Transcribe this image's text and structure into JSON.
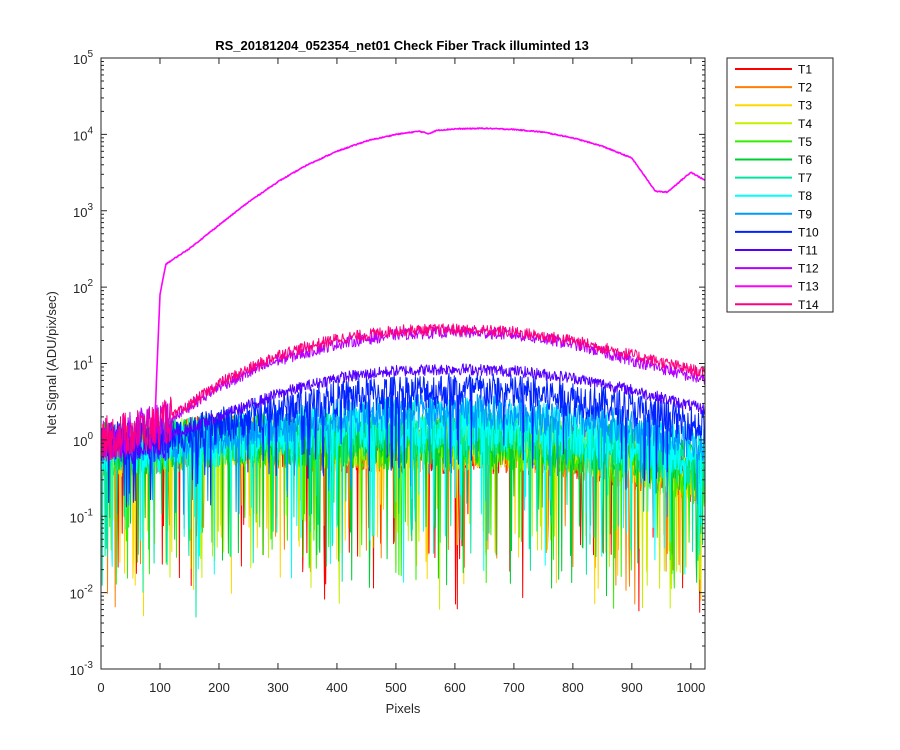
{
  "chart_data": {
    "type": "line",
    "title": "RS_20181204_052354_net01   Check Fiber     Track illuminted 13",
    "xlabel": "Pixels",
    "ylabel": "Net Signal (ADU/pix/sec)",
    "xlim": [
      0,
      1024
    ],
    "ylim": [
      0.001,
      100000
    ],
    "yscale": "log",
    "xticks": [
      "0",
      "100",
      "200",
      "300",
      "400",
      "500",
      "600",
      "700",
      "800",
      "900",
      "1000"
    ],
    "yticks": [
      {
        "base": "10",
        "exp": "-3"
      },
      {
        "base": "10",
        "exp": "-2"
      },
      {
        "base": "10",
        "exp": "-1"
      },
      {
        "base": "10",
        "exp": "0"
      },
      {
        "base": "10",
        "exp": "1"
      },
      {
        "base": "10",
        "exp": "2"
      },
      {
        "base": "10",
        "exp": "3"
      },
      {
        "base": "10",
        "exp": "4"
      },
      {
        "base": "10",
        "exp": "5"
      }
    ],
    "grid": false,
    "legend_position": "outside-right",
    "series": [
      {
        "name": "T1",
        "color": "#ff0000",
        "x": [
          0,
          100,
          200,
          300,
          400,
          500,
          600,
          700,
          800,
          900,
          1024
        ],
        "y": [
          0.8,
          0.8,
          1.0,
          0.9,
          0.8,
          0.8,
          0.8,
          0.8,
          0.7,
          0.5,
          0.3
        ]
      },
      {
        "name": "T2",
        "color": "#ff7f00",
        "x": [
          0,
          100,
          200,
          300,
          400,
          500,
          600,
          700,
          800,
          900,
          1024
        ],
        "y": [
          0.7,
          0.8,
          1.0,
          0.9,
          0.8,
          0.8,
          0.8,
          0.8,
          0.7,
          0.5,
          0.3
        ]
      },
      {
        "name": "T3",
        "color": "#ffd700",
        "x": [
          0,
          100,
          200,
          300,
          400,
          500,
          600,
          700,
          800,
          900,
          1024
        ],
        "y": [
          0.7,
          0.8,
          1.0,
          1.0,
          0.9,
          0.9,
          0.9,
          0.9,
          0.8,
          0.6,
          0.3
        ]
      },
      {
        "name": "T4",
        "color": "#c4f000",
        "x": [
          0,
          100,
          200,
          300,
          400,
          500,
          600,
          700,
          800,
          900,
          1024
        ],
        "y": [
          0.7,
          0.8,
          1.0,
          1.0,
          0.9,
          0.9,
          0.9,
          0.9,
          0.8,
          0.6,
          0.3
        ]
      },
      {
        "name": "T5",
        "color": "#33ee00",
        "x": [
          0,
          100,
          200,
          300,
          400,
          500,
          600,
          700,
          800,
          900,
          1024
        ],
        "y": [
          0.7,
          0.8,
          1.0,
          1.0,
          0.9,
          0.9,
          0.9,
          0.9,
          0.8,
          0.6,
          0.3
        ]
      },
      {
        "name": "T6",
        "color": "#00cc33",
        "x": [
          0,
          100,
          200,
          300,
          400,
          500,
          600,
          700,
          800,
          900,
          1024
        ],
        "y": [
          0.8,
          0.8,
          1.0,
          1.0,
          1.0,
          1.0,
          1.0,
          1.0,
          0.9,
          0.7,
          0.4
        ]
      },
      {
        "name": "T7",
        "color": "#00e5a0",
        "x": [
          0,
          100,
          200,
          300,
          400,
          500,
          600,
          700,
          800,
          900,
          1024
        ],
        "y": [
          0.8,
          0.8,
          1.0,
          1.2,
          1.3,
          1.4,
          1.4,
          1.3,
          1.1,
          0.8,
          0.5
        ]
      },
      {
        "name": "T8",
        "color": "#00ffff",
        "x": [
          0,
          100,
          200,
          300,
          400,
          500,
          600,
          700,
          800,
          900,
          1024
        ],
        "y": [
          0.8,
          0.8,
          1.0,
          1.3,
          1.5,
          1.6,
          1.6,
          1.5,
          1.3,
          1.0,
          0.6
        ]
      },
      {
        "name": "T9",
        "color": "#0099ff",
        "x": [
          0,
          100,
          200,
          300,
          400,
          500,
          600,
          700,
          800,
          900,
          1024
        ],
        "y": [
          0.8,
          0.9,
          1.1,
          1.5,
          2.0,
          2.3,
          2.4,
          2.2,
          1.8,
          1.4,
          0.9
        ]
      },
      {
        "name": "T10",
        "color": "#0022ff",
        "x": [
          0,
          100,
          200,
          300,
          400,
          500,
          600,
          700,
          800,
          900,
          1024
        ],
        "y": [
          0.9,
          1.0,
          1.5,
          2.5,
          3.5,
          4.2,
          4.5,
          4.2,
          3.5,
          2.5,
          1.5
        ]
      },
      {
        "name": "T11",
        "color": "#5500ff",
        "x": [
          0,
          100,
          200,
          300,
          400,
          500,
          600,
          700,
          800,
          900,
          1024
        ],
        "y": [
          0.9,
          1.0,
          2.0,
          4.0,
          6.5,
          8.0,
          8.5,
          8.0,
          6.5,
          4.5,
          2.5
        ]
      },
      {
        "name": "T12",
        "color": "#b300ff",
        "x": [
          0,
          100,
          200,
          300,
          400,
          500,
          600,
          700,
          800,
          900,
          1024
        ],
        "y": [
          1.0,
          1.5,
          5.0,
          11.0,
          18.0,
          24.0,
          26.0,
          24.0,
          18.0,
          11.0,
          6.0
        ]
      },
      {
        "name": "T13",
        "color": "#ff00ff",
        "x": [
          90,
          100,
          110,
          150,
          200,
          250,
          300,
          350,
          400,
          450,
          500,
          540,
          555,
          570,
          600,
          650,
          700,
          750,
          800,
          850,
          900,
          940,
          960,
          1000,
          1024
        ],
        "y": [
          1.0,
          80,
          200,
          320,
          650,
          1300,
          2400,
          4000,
          6000,
          8200,
          10000,
          11000,
          10200,
          11300,
          11800,
          12000,
          11600,
          10700,
          9000,
          7000,
          4900,
          1800,
          1750,
          3200,
          2500
        ]
      },
      {
        "name": "T14",
        "color": "#ff007f",
        "x": [
          0,
          100,
          200,
          300,
          400,
          500,
          600,
          700,
          800,
          900,
          1024
        ],
        "y": [
          1.0,
          1.5,
          5.5,
          13.0,
          21.0,
          27.0,
          28.0,
          26.0,
          20.0,
          13.0,
          7.5
        ]
      }
    ]
  }
}
